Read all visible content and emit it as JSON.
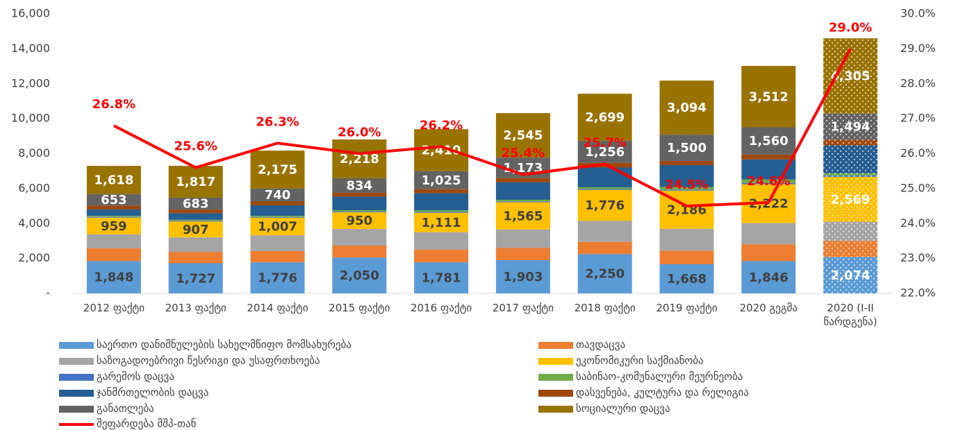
{
  "chart_data": {
    "type": "stacked_bar_line",
    "categories": [
      "2012 ფაქტი",
      "2013 ფაქტი",
      "2014 ფაქტი",
      "2015 ფაქტი",
      "2016 ფაქტი",
      "2017 ფაქტი",
      "2018 ფაქტი",
      "2019 ფაქტი",
      "2020 გეგმა",
      "2020 (I-II წარდგენა)"
    ],
    "series": [
      {
        "name": "საერთო დანიშნულების სახელმწიფო მომსახურება",
        "color": "#5b9bd5",
        "label_color": "#404040",
        "values": [
          1848,
          1727,
          1776,
          2050,
          1781,
          1903,
          2250,
          1668,
          1846,
          2074
        ],
        "value_labels": [
          "1,848",
          "1,727",
          "1,776",
          "2,050",
          "1,781",
          "1,903",
          "2,250",
          "1,668",
          "1,846",
          "2,074"
        ]
      },
      {
        "name": "თავდაცვა",
        "color": "#ed7d31",
        "values": [
          730,
          650,
          650,
          690,
          720,
          700,
          700,
          780,
          960,
          930
        ]
      },
      {
        "name": "საზოგადოებრივი წესრიგი და უსაფრთხოება",
        "color": "#a5a5a5",
        "values": [
          800,
          830,
          900,
          950,
          1000,
          1050,
          1200,
          1250,
          1220,
          1100
        ]
      },
      {
        "name": "ეკონომიკური საქმიანობა",
        "color": "#ffc000",
        "label_color": "#404040",
        "values": [
          959,
          907,
          1007,
          950,
          1111,
          1565,
          1776,
          2186,
          2222,
          2569
        ],
        "value_labels": [
          "959",
          "907",
          "1,007",
          "950",
          "1,111",
          "1,565",
          "1,776",
          "2,186",
          "2,222",
          "2,569"
        ]
      },
      {
        "name": "გარემოს დაცვა",
        "color": "#4472c4",
        "values": [
          40,
          40,
          40,
          40,
          50,
          50,
          50,
          60,
          70,
          80
        ]
      },
      {
        "name": "საბინაო-კომუნალური მეურნეობა",
        "color": "#70ad47",
        "values": [
          60,
          60,
          70,
          80,
          90,
          90,
          100,
          150,
          200,
          120
        ]
      },
      {
        "name": "ჯანმრთელობის დაცვა",
        "color": "#255e91",
        "values": [
          370,
          380,
          600,
          780,
          980,
          1000,
          1130,
          1250,
          1150,
          1600
        ]
      },
      {
        "name": "დასვენება, კულტურა და რელიგია",
        "color": "#9e480e",
        "values": [
          222,
          206,
          217,
          218,
          233,
          244,
          269,
          242,
          280,
          328
        ]
      },
      {
        "name": "განათლება",
        "color": "#636363",
        "label_color": "#ffffff",
        "values": [
          653,
          683,
          740,
          834,
          1025,
          1173,
          1256,
          1500,
          1560,
          1494
        ],
        "value_labels": [
          "653",
          "683",
          "740",
          "834",
          "1,025",
          "1,173",
          "1,256",
          "1,500",
          "1,560",
          "1,494"
        ]
      },
      {
        "name": "სოციალური დაცვა",
        "color": "#997300",
        "label_color": "#ffffff",
        "values": [
          1618,
          1817,
          2175,
          2218,
          2410,
          2545,
          2699,
          3094,
          3512,
          4305
        ],
        "value_labels": [
          "1,618",
          "1,817",
          "2,175",
          "2,218",
          "2,410",
          "2,545",
          "2,699",
          "3,094",
          "3,512",
          "4,305"
        ]
      },
      {
        "name": "შეფარდება მშპ-თან",
        "color": "#ff0000",
        "axis": "y2",
        "values": [
          26.8,
          25.6,
          26.3,
          26.0,
          26.2,
          25.4,
          25.7,
          24.5,
          24.6,
          29.0
        ],
        "value_labels": [
          "26.8%",
          "25.6%",
          "26.3%",
          "26.0%",
          "26.2%",
          "25.4%",
          "25.7%",
          "24.5%",
          "24.6%",
          "29.0%"
        ]
      }
    ],
    "ylim": [
      0,
      16000
    ],
    "yticks": [
      {
        "value": 0,
        "label": "-"
      },
      {
        "value": 2000,
        "label": "2,000"
      },
      {
        "value": 4000,
        "label": "4,000"
      },
      {
        "value": 6000,
        "label": "6,000"
      },
      {
        "value": 8000,
        "label": "8,000"
      },
      {
        "value": 10000,
        "label": "10,000"
      },
      {
        "value": 12000,
        "label": "12,000"
      },
      {
        "value": 14000,
        "label": "14,000"
      },
      {
        "value": 16000,
        "label": "16,000"
      }
    ],
    "y2lim": [
      22,
      30
    ],
    "y2ticks": [
      {
        "value": 22,
        "label": "22.0%"
      },
      {
        "value": 23,
        "label": "23.0%"
      },
      {
        "value": 24,
        "label": "24.0%"
      },
      {
        "value": 25,
        "label": "25.0%"
      },
      {
        "value": 26,
        "label": "26.0%"
      },
      {
        "value": 27,
        "label": "27.0%"
      },
      {
        "value": 28,
        "label": "28.0%"
      },
      {
        "value": 29,
        "label": "29.0%"
      },
      {
        "value": 30,
        "label": "30.0%"
      }
    ],
    "grid": false
  }
}
